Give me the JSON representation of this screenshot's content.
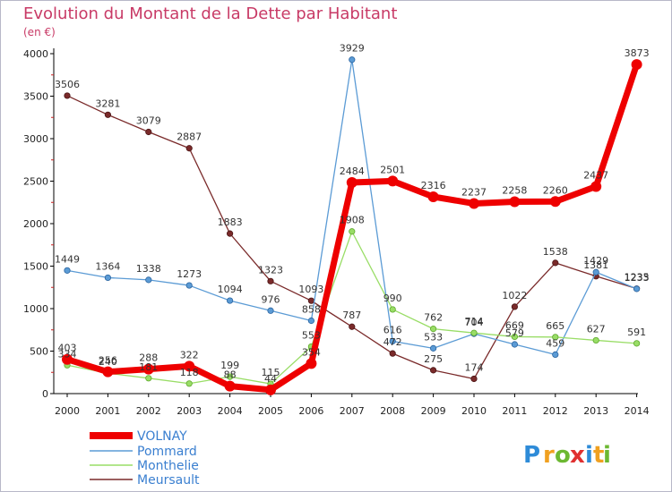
{
  "chart_data": {
    "type": "line",
    "title": "Evolution du Montant de la Dette par Habitant",
    "subtitle": "(en €)",
    "xlabel": "",
    "ylabel": "",
    "x": [
      "2000",
      "2001",
      "2002",
      "2003",
      "2004",
      "2005",
      "2006",
      "2007",
      "2008",
      "2009",
      "2010",
      "2011",
      "2012",
      "2013",
      "2014"
    ],
    "ylim": [
      0,
      4000
    ],
    "yticks": [
      "0",
      "500",
      "1000",
      "1500",
      "2000",
      "2500",
      "3000",
      "3500",
      "4000"
    ],
    "grid": false,
    "legend_position": "bottom-left",
    "series": [
      {
        "name": "VOLNAY",
        "color": "#ee0000",
        "values": [
          403,
          256,
          288,
          322,
          88,
          44,
          354,
          2484,
          2501,
          2316,
          2237,
          2258,
          2260,
          2437,
          3873
        ]
      },
      {
        "name": "Pommard",
        "color": "#5b9bd5",
        "values": [
          1449,
          1364,
          1338,
          1273,
          1094,
          976,
          858,
          3929,
          616,
          533,
          704,
          579,
          459,
          1429,
          1233
        ]
      },
      {
        "name": "Monthelie",
        "color": "#99dd66",
        "values": [
          334,
          240,
          181,
          118,
          199,
          115,
          553,
          1908,
          990,
          762,
          714,
          669,
          665,
          627,
          591
        ]
      },
      {
        "name": "Meursault",
        "color": "#7a2a2a",
        "values": [
          3506,
          3281,
          3079,
          2887,
          1883,
          1323,
          1093,
          787,
          472,
          275,
          174,
          1022,
          1538,
          1381,
          1235
        ]
      }
    ]
  },
  "logo": {
    "letters": [
      "P",
      "r",
      "o",
      "x",
      "i",
      "t",
      "i"
    ],
    "colors": [
      "#2e8bd8",
      "#f0a020",
      "#6cb832",
      "#e03030",
      "#2e8bd8",
      "#f0a020",
      "#6cb832"
    ]
  }
}
